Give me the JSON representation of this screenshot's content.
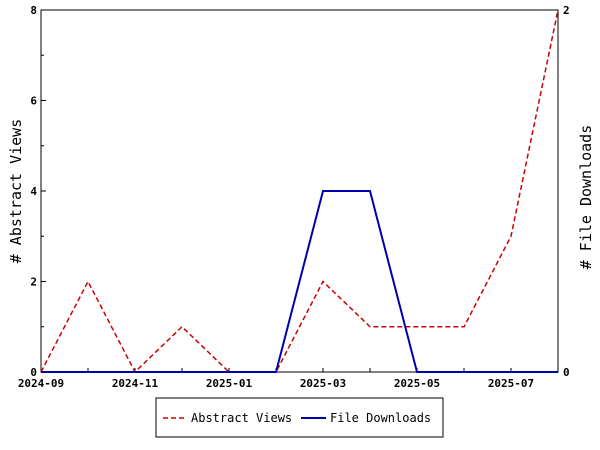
{
  "chart_data": {
    "type": "line",
    "x": [
      "2024-09",
      "2024-10",
      "2024-11",
      "2024-12",
      "2025-01",
      "2025-02",
      "2025-03",
      "2025-04",
      "2025-05",
      "2025-06",
      "2025-07",
      "2025-08"
    ],
    "x_tick_labels": [
      "2024-09",
      "2024-11",
      "2025-01",
      "2025-03",
      "2025-05",
      "2025-07"
    ],
    "series": [
      {
        "name": "Abstract Views",
        "axis": "left",
        "color": "#cc0000",
        "dash": "dashed",
        "values": [
          0,
          2,
          0,
          1,
          0,
          0,
          2,
          1,
          1,
          1,
          3,
          8
        ]
      },
      {
        "name": "File Downloads",
        "axis": "right",
        "color": "#0000aa",
        "dash": "solid",
        "values": [
          0,
          0,
          0,
          0,
          0,
          0,
          1,
          1,
          0,
          0,
          0,
          0
        ]
      }
    ],
    "y_left": {
      "label": "# Abstract Views",
      "range": [
        0,
        8
      ],
      "ticks": [
        0,
        2,
        4,
        6,
        8
      ]
    },
    "y_right": {
      "label": "# File Downloads",
      "range": [
        0,
        2
      ],
      "ticks": [
        0,
        2
      ]
    },
    "grid": false,
    "legend_position": "bottom-center"
  }
}
